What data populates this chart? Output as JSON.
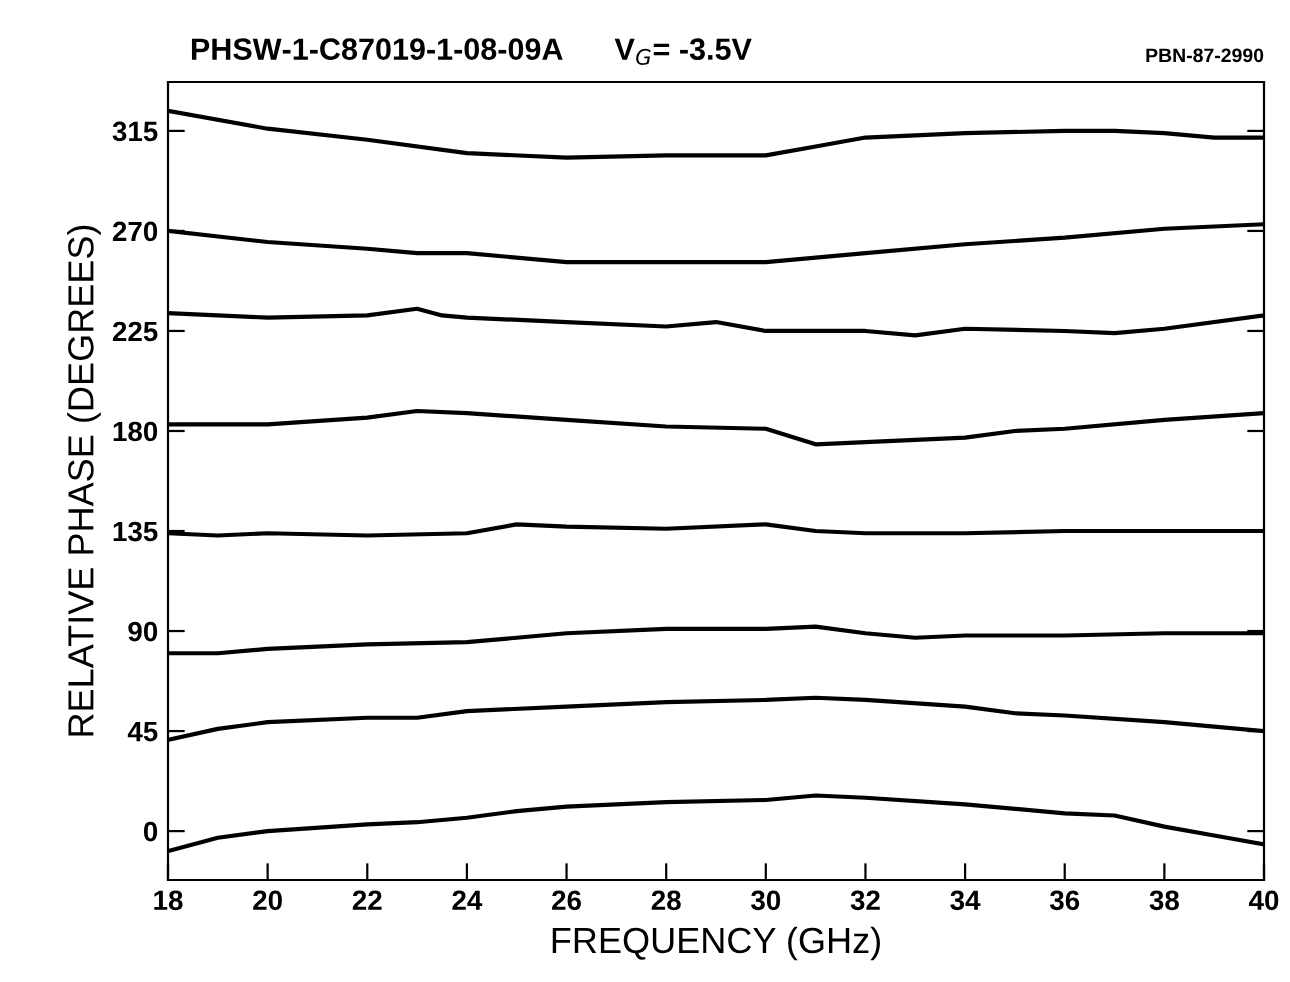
{
  "chart_data": {
    "type": "line",
    "title": "PHSW-1-C87019-1-08-09A      V$_{G}$= -3.5V",
    "subtitle": "PBN-87-2990",
    "xlabel": "FREQUENCY (GHz)",
    "ylabel": "RELATIVE PHASE (DEGREES)",
    "xlim": [
      18,
      40
    ],
    "xticks": [
      18,
      20,
      22,
      24,
      26,
      28,
      30,
      32,
      34,
      36,
      38,
      40
    ],
    "ylim": [
      -22,
      337
    ],
    "yticks": [
      0,
      45,
      90,
      135,
      180,
      225,
      270,
      315
    ],
    "grid": false,
    "marker": "none",
    "line_style": "solid",
    "series": [
      {
        "color": "#000000",
        "x": [
          18,
          19,
          20,
          22,
          23,
          24,
          25,
          26,
          28,
          30,
          31,
          32,
          34,
          36,
          37,
          38,
          39,
          40
        ],
        "values": [
          -9,
          -3,
          0,
          3,
          4,
          6,
          9,
          11,
          13,
          14,
          16,
          15,
          12,
          8,
          7,
          2,
          -2,
          -6
        ]
      },
      {
        "color": "#000000",
        "x": [
          18,
          19,
          20,
          22,
          23,
          24,
          26,
          28,
          30,
          31,
          32,
          34,
          35,
          36,
          38,
          40
        ],
        "values": [
          41,
          46,
          49,
          51,
          51,
          54,
          56,
          58,
          59,
          60,
          59,
          56,
          53,
          52,
          49,
          45
        ]
      },
      {
        "color": "#000000",
        "x": [
          18,
          19,
          20,
          22,
          24,
          25,
          26,
          28,
          30,
          31,
          32,
          33,
          34,
          36,
          38,
          40
        ],
        "values": [
          80,
          80,
          82,
          84,
          85,
          87,
          89,
          91,
          91,
          92,
          89,
          87,
          88,
          88,
          89,
          89
        ]
      },
      {
        "color": "#000000",
        "x": [
          18,
          19,
          20,
          22,
          24,
          25,
          26,
          28,
          30,
          31,
          32,
          34,
          36,
          38,
          40
        ],
        "values": [
          134,
          133,
          134,
          133,
          134,
          138,
          137,
          136,
          138,
          135,
          134,
          134,
          135,
          135,
          135
        ]
      },
      {
        "color": "#000000",
        "x": [
          18,
          20,
          22,
          23,
          24,
          26,
          28,
          30,
          31,
          32,
          34,
          35,
          36,
          38,
          40
        ],
        "values": [
          183,
          183,
          186,
          189,
          188,
          185,
          182,
          181,
          174,
          175,
          177,
          180,
          181,
          185,
          188
        ]
      },
      {
        "color": "#000000",
        "x": [
          18,
          20,
          22,
          23,
          23.5,
          24,
          26,
          28,
          29,
          30,
          32,
          33,
          34,
          36,
          37,
          38,
          40
        ],
        "values": [
          233,
          231,
          232,
          235,
          232,
          231,
          229,
          227,
          229,
          225,
          225,
          223,
          226,
          225,
          224,
          226,
          232
        ]
      },
      {
        "color": "#000000",
        "x": [
          18,
          20,
          22,
          23,
          24,
          26,
          28,
          30,
          32,
          34,
          36,
          38,
          40
        ],
        "values": [
          270,
          265,
          262,
          260,
          260,
          256,
          256,
          256,
          260,
          264,
          267,
          271,
          273
        ]
      },
      {
        "color": "#000000",
        "x": [
          18,
          20,
          22,
          24,
          26,
          28,
          30,
          31,
          32,
          34,
          36,
          37,
          38,
          39,
          40
        ],
        "values": [
          324,
          316,
          311,
          305,
          303,
          304,
          304,
          308,
          312,
          314,
          315,
          315,
          314,
          312,
          312
        ]
      }
    ]
  }
}
